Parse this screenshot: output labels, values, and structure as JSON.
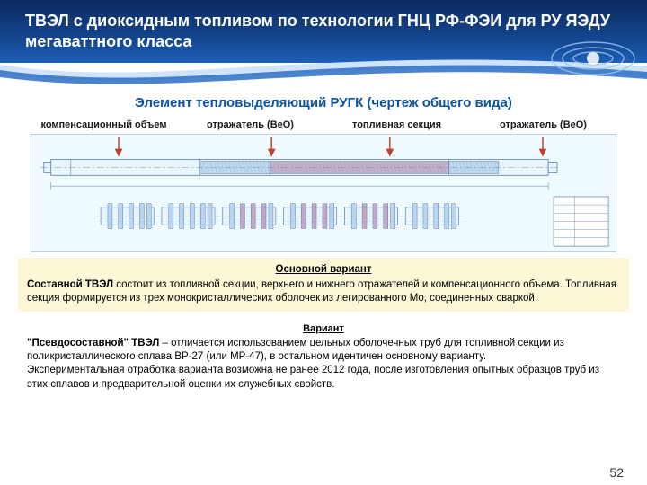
{
  "title": "ТВЭЛ с диоксидным топливом по технологии ГНЦ РФ-ФЭИ для РУ ЯЭДУ мегаваттного класса",
  "subtitle": "Элемент тепловыделяющий РУГК (чертеж общего вида)",
  "subtitle_color": "#0a52a0",
  "labels": {
    "l1": "компенсационный объем",
    "l2": "отражатель (BeO)",
    "l3": "топливная секция",
    "l4": "отражатель (BeO)"
  },
  "label_color": "#1a1a1a",
  "box_main": {
    "heading": "Основной вариант",
    "body_html": "<b>Составной ТВЭЛ</b> состоит из топливной секции, верхнего и нижнего отражателей и компенсационного объема. Топливная секция формируется из трех монокристаллических оболочек из легированного Mo, соединенных сваркой.",
    "bg": "#fbf7d7"
  },
  "box_var": {
    "heading": "Вариант",
    "body_html": "<b>\"Псевдосоставной\" ТВЭЛ</b> – отличается использованием цельных оболочечных труб для топливной секции из поликристаллического сплава ВР-27 (или МР-47), в остальном идентичен основному варианту.<br>Экспериментальная отработка варианта возможна не ранее 2012 года, после изготовления опытных образцов труб из этих сплавов и предварительной оценки их служебных свойств.",
    "bg": "#ffffff"
  },
  "page_number": "52",
  "header": {
    "grad_top": "#0c2a5e",
    "grad_mid": "#154a96",
    "grad_bot": "#1d5fb8",
    "curve_light": "#cfe4fb",
    "curve_dark": "#2b6fc4"
  },
  "drawing": {
    "bg": "#f0fbff",
    "border": "#bfcfe6",
    "line": "#5b7da6",
    "rod_fill": "#e8f5fd",
    "reflector_fill": "#a6c7e8",
    "fuel_fill": "#b088b0",
    "arrow_color": "#c04030",
    "title_block_stroke": "#5b7da6",
    "callouts": [
      {
        "x": 0.145
      },
      {
        "x": 0.41
      },
      {
        "x": 0.615
      },
      {
        "x": 0.88
      }
    ],
    "sections_x": [
      0.09,
      0.23,
      0.37,
      0.51,
      0.65,
      0.79
    ]
  }
}
